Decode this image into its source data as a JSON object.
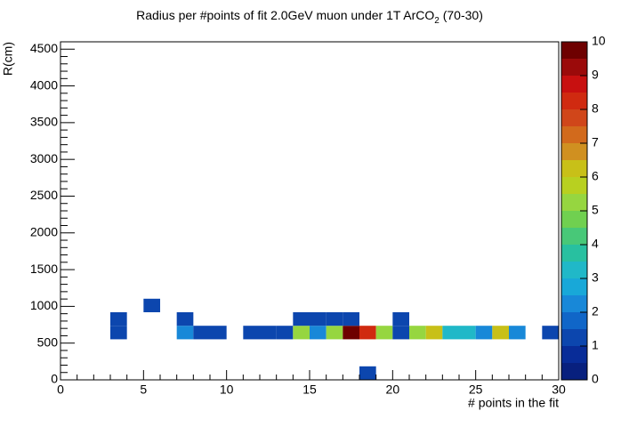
{
  "chart_data": {
    "type": "heatmap",
    "title": [
      "Radius per #points of fit 2.0GeV muon under 1T ArCO",
      "2",
      " (70-30)"
    ],
    "x_label": "# points in the fit",
    "y_label": "R(cm)",
    "xlim": [
      0,
      30
    ],
    "xticks": [
      0,
      5,
      10,
      15,
      20,
      25,
      30
    ],
    "ylim": [
      0,
      4600
    ],
    "yticks": [
      0,
      500,
      1000,
      1500,
      2000,
      2500,
      3000,
      3500,
      4000,
      4500
    ],
    "zlim": [
      0,
      10
    ],
    "zticks": [
      0,
      1,
      2,
      3,
      4,
      5,
      6,
      7,
      8,
      9,
      10
    ],
    "xbin_width": 1,
    "ybin_width": 184,
    "palette": [
      "#08207e",
      "#082c98",
      "#0c46ae",
      "#1066c8",
      "#1888d8",
      "#18a8d8",
      "#20b8c8",
      "#28c0a0",
      "#48c878",
      "#70d050",
      "#96d640",
      "#b8d020",
      "#c8c018",
      "#d09020",
      "#d26a1c",
      "#d0461a",
      "#d02a10",
      "#c81010",
      "#9b0a0a",
      "#6e0000"
    ],
    "cells": [
      {
        "x": 3,
        "y": 552,
        "value": 1
      },
      {
        "x": 7,
        "y": 552,
        "value": 2
      },
      {
        "x": 8,
        "y": 552,
        "value": 1
      },
      {
        "x": 9,
        "y": 552,
        "value": 1
      },
      {
        "x": 11,
        "y": 552,
        "value": 1
      },
      {
        "x": 12,
        "y": 552,
        "value": 1
      },
      {
        "x": 13,
        "y": 552,
        "value": 1
      },
      {
        "x": 14,
        "y": 552,
        "value": 5
      },
      {
        "x": 15,
        "y": 552,
        "value": 2
      },
      {
        "x": 16,
        "y": 552,
        "value": 5
      },
      {
        "x": 17,
        "y": 552,
        "value": 10
      },
      {
        "x": 18,
        "y": 552,
        "value": 8
      },
      {
        "x": 19,
        "y": 552,
        "value": 5
      },
      {
        "x": 20,
        "y": 552,
        "value": 1
      },
      {
        "x": 21,
        "y": 552,
        "value": 5
      },
      {
        "x": 22,
        "y": 552,
        "value": 6
      },
      {
        "x": 23,
        "y": 552,
        "value": 3
      },
      {
        "x": 24,
        "y": 552,
        "value": 3
      },
      {
        "x": 25,
        "y": 552,
        "value": 2
      },
      {
        "x": 26,
        "y": 552,
        "value": 6
      },
      {
        "x": 27,
        "y": 552,
        "value": 2
      },
      {
        "x": 29,
        "y": 552,
        "value": 1
      },
      {
        "x": 3,
        "y": 736,
        "value": 1
      },
      {
        "x": 7,
        "y": 736,
        "value": 1
      },
      {
        "x": 14,
        "y": 736,
        "value": 1
      },
      {
        "x": 15,
        "y": 736,
        "value": 1
      },
      {
        "x": 16,
        "y": 736,
        "value": 1
      },
      {
        "x": 17,
        "y": 736,
        "value": 1
      },
      {
        "x": 20,
        "y": 736,
        "value": 1
      },
      {
        "x": 5,
        "y": 920,
        "value": 1
      },
      {
        "x": 18,
        "y": 0,
        "value": 1
      }
    ]
  }
}
